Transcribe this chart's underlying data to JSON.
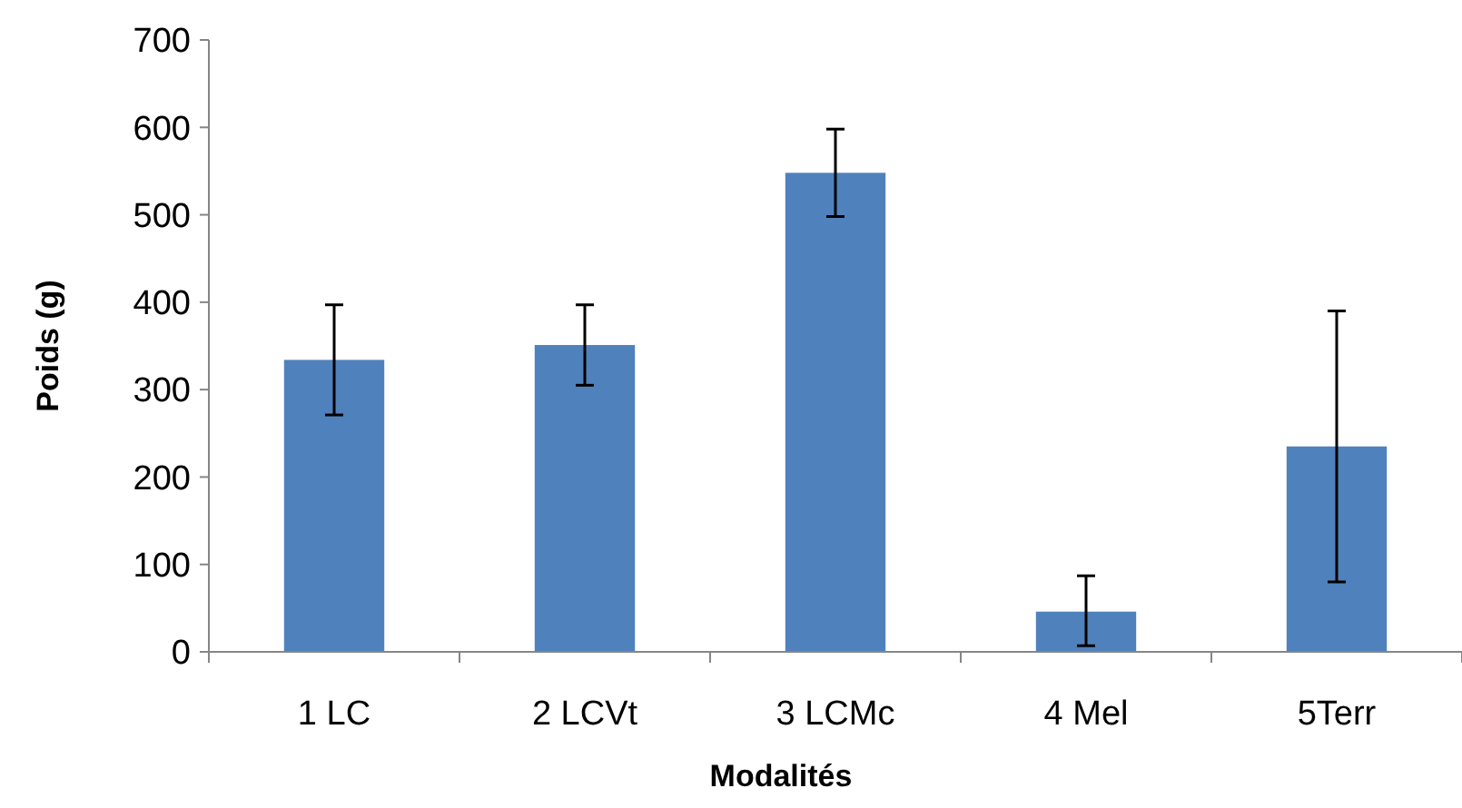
{
  "chart_data": {
    "type": "bar",
    "xlabel": "Modalités",
    "ylabel": "Poids (g)",
    "categories": [
      "1 LC",
      "2 LCVt",
      "3 LCMc",
      "4 Mel",
      "5Terr"
    ],
    "values": [
      334,
      351,
      548,
      46,
      235
    ],
    "errors": [
      [
        271,
        397
      ],
      [
        305,
        397
      ],
      [
        498,
        598
      ],
      [
        7,
        87
      ],
      [
        80,
        390
      ]
    ],
    "color": "#4f81bd",
    "ylim": [
      0,
      700
    ],
    "yticks": [
      0,
      100,
      200,
      300,
      400,
      500,
      600,
      700
    ],
    "grid": false
  }
}
